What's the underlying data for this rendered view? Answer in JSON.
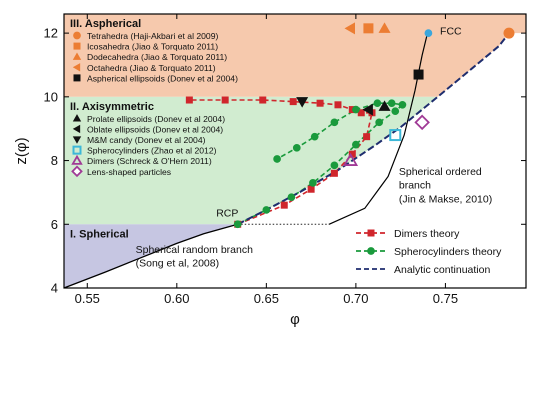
{
  "chart_data": {
    "type": "scatter",
    "xlabel": "φ",
    "ylabel": "z(φ)",
    "xlim": [
      0.537,
      0.795
    ],
    "ylim": [
      4,
      12.6
    ],
    "x_ticks": [
      0.55,
      0.6,
      0.65,
      0.7,
      0.75
    ],
    "x_tick_labels": [
      "0.55",
      "0.60",
      "0.65",
      "0.70",
      "0.75"
    ],
    "y_ticks": [
      4,
      6,
      8,
      10,
      12
    ],
    "y_tick_labels": [
      "4",
      "6",
      "8",
      "10",
      "12"
    ],
    "regions": [
      {
        "label": "III. Aspherical",
        "y_from": 10,
        "y_to": 12.6,
        "color": "#f6c9ad"
      },
      {
        "label": "II. Axisymmetric",
        "y_from": 6,
        "y_to": 10,
        "color": "#d1ecd0"
      },
      {
        "label": "I. Spherical",
        "y_from": 4,
        "y_to": 6,
        "color": "#c6c6e2"
      }
    ],
    "region_colors": {
      "aspherical": "#f6c9ad",
      "axisymmetric": "#d1ecd0",
      "spherical": "#c6c6e2"
    },
    "point_legend": [
      {
        "label": "Tetrahedra (Haji-Akbari et al 2009)",
        "marker": "circle",
        "color": "#ec7d33"
      },
      {
        "label": "Icosahedra (Jiao & Torquato 2011)",
        "marker": "square",
        "color": "#ec7d33"
      },
      {
        "label": "Dodecahedra (Jiao & Torquato 2011)",
        "marker": "triangle-up",
        "color": "#ec7d33"
      },
      {
        "label": "Octahedra (Jiao & Torquato 2011)",
        "marker": "triangle-left",
        "color": "#ec7d33"
      },
      {
        "label": "Aspherical ellipsoids (Donev et al 2004)",
        "marker": "square",
        "color": "#111111"
      },
      {
        "label": "Prolate ellipsoids (Donev et al 2004)",
        "marker": "triangle-up",
        "color": "#111111"
      },
      {
        "label": "Oblate ellipsoids (Donev et al 2004)",
        "marker": "triangle-left",
        "color": "#111111"
      },
      {
        "label": "M&M candy (Donev et al 2004)",
        "marker": "triangle-down",
        "color": "#111111"
      },
      {
        "label": "Spherocylinders (Zhao et al 2012)",
        "marker": "square-open",
        "color": "#3db8d8"
      },
      {
        "label": "Dimers (Schreck & O'Hern 2011)",
        "marker": "triangle-open",
        "color": "#a03a96"
      },
      {
        "label": "Lens-shaped particles",
        "marker": "diamond-open",
        "color": "#a03a96"
      }
    ],
    "line_legend": [
      {
        "label": "Dimers theory",
        "color": "#d0262c",
        "marker": "square",
        "dash": true
      },
      {
        "label": "Spherocylinders theory",
        "color": "#1a9a3c",
        "marker": "circle",
        "dash": true
      },
      {
        "label": "Analytic continuation",
        "color": "#1e2d6e",
        "marker": "none",
        "dash": true
      }
    ],
    "series": [
      {
        "name": "Dimers theory",
        "color": "#d0262c",
        "marker": "square",
        "x": [
          0.634,
          0.66,
          0.675,
          0.688,
          0.698,
          0.706,
          0.709,
          0.703,
          0.698,
          0.69,
          0.68,
          0.665,
          0.648,
          0.627,
          0.607
        ],
        "y": [
          6.0,
          6.6,
          7.1,
          7.6,
          8.2,
          8.75,
          9.5,
          9.5,
          9.6,
          9.75,
          9.8,
          9.85,
          9.9,
          9.9,
          9.9
        ]
      },
      {
        "name": "Spherocylinders theory",
        "color": "#1a9a3c",
        "marker": "circle",
        "x": [
          0.634,
          0.65,
          0.664,
          0.676,
          0.688,
          0.7,
          0.713,
          0.722,
          0.726,
          0.72,
          0.712,
          0.7,
          0.688,
          0.677,
          0.667,
          0.656
        ],
        "y": [
          6.0,
          6.45,
          6.85,
          7.3,
          7.85,
          8.5,
          9.2,
          9.55,
          9.75,
          9.8,
          9.8,
          9.6,
          9.2,
          8.75,
          8.4,
          8.05
        ]
      },
      {
        "name": "Analytic continuation",
        "color": "#1e2d6e",
        "x": [
          0.634,
          0.65,
          0.67,
          0.69,
          0.71,
          0.725,
          0.737,
          0.75,
          0.765,
          0.78,
          0.7855
        ],
        "y": [
          6.0,
          6.45,
          7.05,
          7.7,
          8.45,
          9.05,
          9.6,
          10.2,
          10.9,
          11.6,
          12.0
        ]
      }
    ],
    "spherical_random_branch": {
      "x": [
        0.537,
        0.56,
        0.58,
        0.6,
        0.615,
        0.634
      ],
      "y": [
        4.0,
        4.5,
        4.95,
        5.4,
        5.7,
        6.0
      ]
    },
    "dotted_line": {
      "x": [
        0.634,
        0.685
      ],
      "y": [
        6.0,
        6.0
      ]
    },
    "spherical_ordered_branch": {
      "x": [
        0.685,
        0.705,
        0.718,
        0.727,
        0.733,
        0.737,
        0.74
      ],
      "y": [
        6.0,
        6.5,
        7.5,
        8.8,
        10.2,
        11.3,
        12.0
      ]
    },
    "points": [
      {
        "name": "Tetrahedra",
        "marker": "circle",
        "color": "#ec7d33",
        "x": 0.7855,
        "y": 12.0
      },
      {
        "name": "Icosahedra",
        "marker": "square",
        "color": "#ec7d33",
        "x": 0.707,
        "y": 12.15
      },
      {
        "name": "Dodecahedra",
        "marker": "triangle-up",
        "color": "#ec7d33",
        "x": 0.716,
        "y": 12.15
      },
      {
        "name": "Octahedra",
        "marker": "triangle-left",
        "color": "#ec7d33",
        "x": 0.697,
        "y": 12.15
      },
      {
        "name": "Aspherical ellipsoids",
        "marker": "square",
        "color": "#111111",
        "x": 0.735,
        "y": 10.7
      },
      {
        "name": "Prolate ellipsoids",
        "marker": "triangle-up",
        "color": "#111111",
        "x": 0.716,
        "y": 9.7
      },
      {
        "name": "Oblate ellipsoids",
        "marker": "triangle-left",
        "color": "#111111",
        "x": 0.707,
        "y": 9.6
      },
      {
        "name": "M&M candy",
        "marker": "triangle-down",
        "color": "#111111",
        "x": 0.67,
        "y": 9.85
      },
      {
        "name": "Spherocylinders",
        "marker": "square-open",
        "color": "#3db8d8",
        "x": 0.722,
        "y": 8.8
      },
      {
        "name": "Dimers",
        "marker": "triangle-open",
        "color": "#a03a96",
        "x": 0.697,
        "y": 8.0
      },
      {
        "name": "Lens-shaped particles",
        "marker": "diamond-open",
        "color": "#a03a96",
        "x": 0.737,
        "y": 9.2
      },
      {
        "name": "FCC",
        "marker": "circle",
        "color": "#3aa6dc",
        "x": 0.7405,
        "y": 12.0
      }
    ],
    "annotations": [
      {
        "text": "RCP",
        "x": 0.622,
        "y": 6.25
      },
      {
        "text": "FCC",
        "x": 0.747,
        "y": 11.95
      },
      {
        "text": "Spherical ordered",
        "x": 0.724,
        "y": 7.55
      },
      {
        "text": "branch",
        "x": 0.724,
        "y": 7.12
      },
      {
        "text": "(Jin & Makse, 2010)",
        "x": 0.724,
        "y": 6.69
      },
      {
        "text": "Spherical random branch",
        "x": 0.577,
        "y": 5.1
      },
      {
        "text": "(Song et al, 2008)",
        "x": 0.577,
        "y": 4.67
      }
    ]
  }
}
